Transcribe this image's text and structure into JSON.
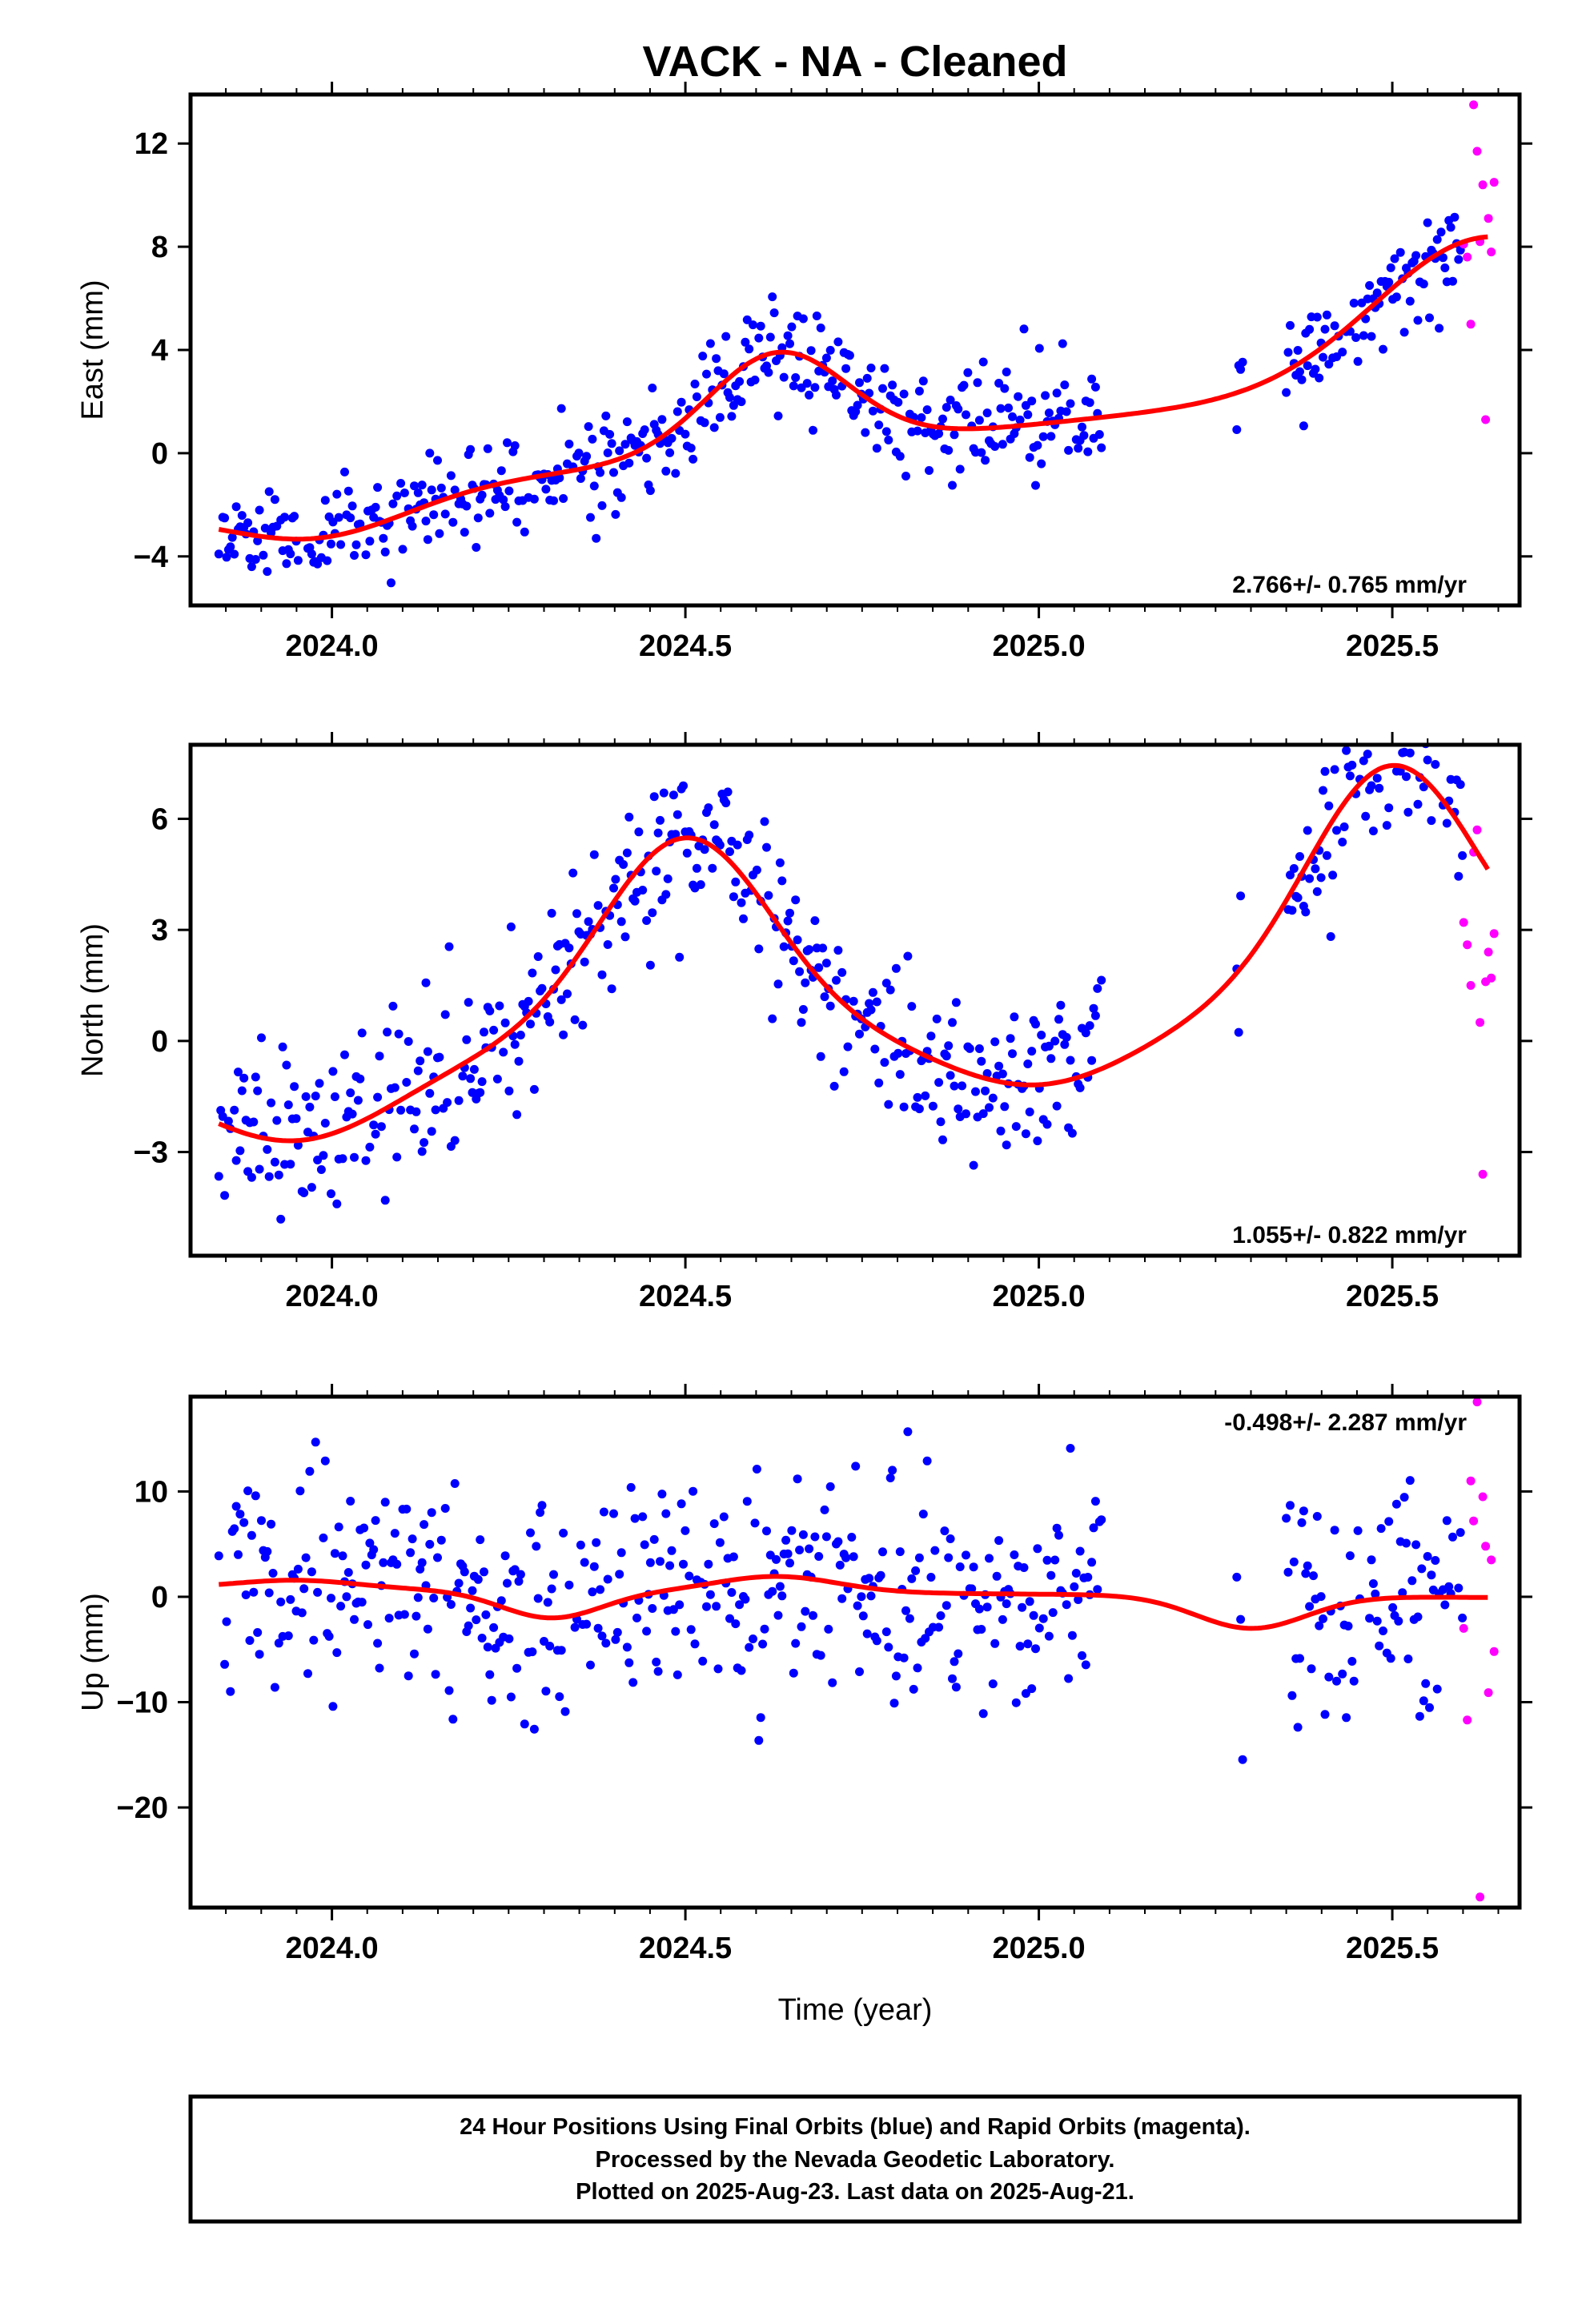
{
  "title": "VACK  - NA - Cleaned",
  "colors": {
    "final": "#0000ff",
    "rapid": "#ff00ff",
    "fit": "#ff0000",
    "frame": "#000000"
  },
  "xlabel": "Time (year)",
  "footer": {
    "line1": "24 Hour Positions Using Final Orbits (blue) and Rapid Orbits (magenta).",
    "line2": "Processed by the Nevada Geodetic Laboratory.",
    "line3": "Plotted on 2025-Aug-23. Last data on 2025-Aug-21."
  },
  "chart_data": [
    {
      "type": "scatter",
      "ylabel": "East (mm)",
      "xlim": [
        2023.8,
        2025.68
      ],
      "ylim": [
        -5.9,
        13.9
      ],
      "xticks": [
        2024.0,
        2024.5,
        2025.0,
        2025.5
      ],
      "xtick_labels": [
        "2024.0",
        "2024.5",
        "2025.0",
        "2025.5"
      ],
      "yticks": [
        -4,
        0,
        4,
        8,
        12
      ],
      "ytick_labels": [
        "−4",
        "0",
        "4",
        "8",
        "12"
      ],
      "rate_label": "2.766+/- 0.765 mm/yr",
      "rate_position": "bottom-right",
      "model": {
        "offset": 0.3,
        "rate": 2.766,
        "t0": 2024.7,
        "bumps": [
          [
            2024.63,
            3.8,
            0.14
          ],
          [
            2023.98,
            -1.6,
            0.18
          ],
          [
            2025.63,
            5.5,
            0.22
          ]
        ]
      },
      "final_segments": [
        [
          2023.84,
          2025.09
        ],
        [
          2025.28,
          2025.29
        ],
        [
          2025.35,
          2025.6
        ]
      ],
      "noise_sd": 1.0,
      "seed": 11,
      "rapid": [
        [
          2025.601,
          8.1
        ],
        [
          2025.606,
          7.6
        ],
        [
          2025.611,
          5.0
        ],
        [
          2025.615,
          13.5
        ],
        [
          2025.62,
          11.7
        ],
        [
          2025.624,
          8.2
        ],
        [
          2025.628,
          10.4
        ],
        [
          2025.632,
          1.3
        ],
        [
          2025.636,
          9.1
        ],
        [
          2025.64,
          7.8
        ],
        [
          2025.644,
          10.5
        ]
      ]
    },
    {
      "type": "scatter",
      "ylabel": "North (mm)",
      "xlim": [
        2023.8,
        2025.68
      ],
      "ylim": [
        -5.8,
        8.0
      ],
      "xticks": [
        2024.0,
        2024.5,
        2025.0,
        2025.5
      ],
      "xtick_labels": [
        "2024.0",
        "2024.5",
        "2025.0",
        "2025.5"
      ],
      "yticks": [
        -3,
        0,
        3,
        6
      ],
      "ytick_labels": [
        "−3",
        "0",
        "3",
        "6"
      ],
      "rate_label": "1.055+/- 0.822 mm/yr",
      "rate_position": "bottom-right",
      "model": {
        "offset": 0.3,
        "rate": 1.055,
        "t0": 2024.7,
        "bumps": [
          [
            2024.5,
            5.4,
            0.17
          ],
          [
            2025.5,
            6.3,
            0.17
          ],
          [
            2023.95,
            -2.2,
            0.2
          ],
          [
            2025.0,
            -1.8,
            0.2
          ]
        ]
      },
      "final_segments": [
        [
          2023.84,
          2025.09
        ],
        [
          2025.28,
          2025.29
        ],
        [
          2025.35,
          2025.6
        ]
      ],
      "noise_sd": 1.1,
      "seed": 23,
      "rapid": [
        [
          2025.601,
          3.2
        ],
        [
          2025.606,
          2.6
        ],
        [
          2025.611,
          1.5
        ],
        [
          2025.615,
          5.1
        ],
        [
          2025.62,
          5.7
        ],
        [
          2025.624,
          0.5
        ],
        [
          2025.628,
          -3.6
        ],
        [
          2025.632,
          1.6
        ],
        [
          2025.636,
          2.4
        ],
        [
          2025.64,
          1.7
        ],
        [
          2025.644,
          2.9
        ]
      ]
    },
    {
      "type": "scatter",
      "ylabel": "Up (mm)",
      "xlim": [
        2023.8,
        2025.68
      ],
      "ylim": [
        -29.5,
        19.0
      ],
      "xticks": [
        2024.0,
        2024.5,
        2025.0,
        2025.5
      ],
      "xtick_labels": [
        "2024.0",
        "2024.5",
        "2025.0",
        "2025.5"
      ],
      "yticks": [
        -20,
        -10,
        0,
        10
      ],
      "ytick_labels": [
        "−20",
        "−10",
        "0",
        "10"
      ],
      "rate_label": "-0.498+/- 2.287 mm/yr",
      "rate_position": "top-right",
      "model": {
        "offset": 0.4,
        "rate": -0.498,
        "t0": 2024.7,
        "bumps": [
          [
            2024.31,
            -2.6,
            0.1
          ],
          [
            2024.63,
            1.5,
            0.12
          ],
          [
            2025.3,
            -3.1,
            0.11
          ],
          [
            2023.95,
            0.8,
            0.12
          ]
        ]
      },
      "final_segments": [
        [
          2023.84,
          2025.09
        ],
        [
          2025.28,
          2025.29
        ],
        [
          2025.35,
          2025.6
        ]
      ],
      "noise_sd": 5.0,
      "seed": 37,
      "rapid": [
        [
          2025.601,
          -3.0
        ],
        [
          2025.606,
          -11.7
        ],
        [
          2025.611,
          11.0
        ],
        [
          2025.615,
          7.2
        ],
        [
          2025.62,
          18.5
        ],
        [
          2025.624,
          -28.5
        ],
        [
          2025.628,
          9.5
        ],
        [
          2025.632,
          4.8
        ],
        [
          2025.636,
          -9.1
        ],
        [
          2025.64,
          3.5
        ],
        [
          2025.644,
          -5.2
        ]
      ]
    }
  ]
}
